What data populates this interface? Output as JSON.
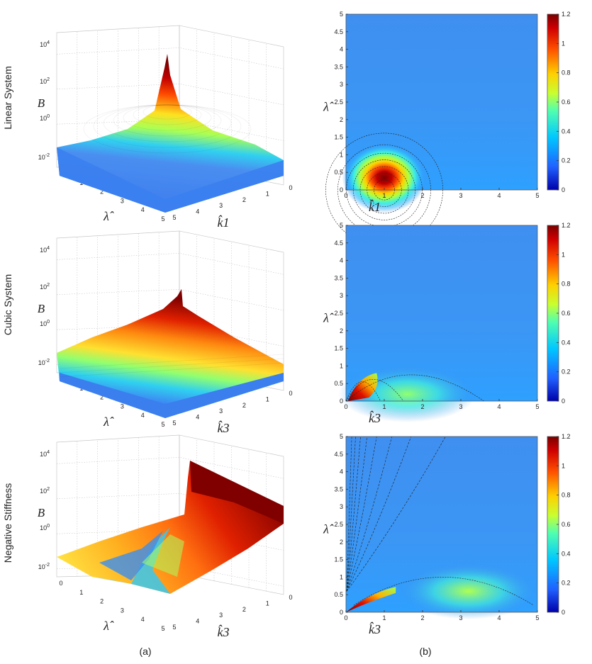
{
  "rows": [
    {
      "label": "Linear System"
    },
    {
      "label": "Cubic System"
    },
    {
      "label": "Negative Stiffness"
    }
  ],
  "columns": [
    {
      "label": "(a)"
    },
    {
      "label": "(b)"
    }
  ],
  "surface_axes": {
    "z_label": "B",
    "z_ticks": [
      "10^-2",
      "10^0",
      "10^2",
      "10^4"
    ],
    "lambda_label": "λ̂",
    "lambda_ticks": [
      "0",
      "1",
      "2",
      "3",
      "4",
      "5"
    ],
    "k_ticks": [
      "0",
      "1",
      "2",
      "3",
      "4",
      "5"
    ]
  },
  "k_labels": [
    "k̂1",
    "k̂3",
    "k̂3"
  ],
  "contour_axes": {
    "x_ticks": [
      "0",
      "1",
      "2",
      "3",
      "4",
      "5"
    ],
    "y_ticks": [
      "0",
      "0.5",
      "1",
      "1.5",
      "2",
      "2.5",
      "3",
      "3.5",
      "4",
      "4.5",
      "5"
    ],
    "y_label": "λ̂"
  },
  "colorbar": {
    "ticks": [
      "0",
      "0.2",
      "0.4",
      "0.6",
      "0.8",
      "1",
      "1.2"
    ],
    "range": [
      0,
      1.2
    ],
    "colormap": "jet"
  },
  "chart_data": [
    {
      "type": "heatmap",
      "panel": "Linear System (a)",
      "xlabel": "k̂1",
      "ylabel": "λ̂",
      "zlabel": "B",
      "xlim": [
        0,
        5
      ],
      "ylim": [
        0,
        5
      ],
      "zscale": "log",
      "zlim": [
        0.01,
        10000
      ]
    },
    {
      "type": "heatmap",
      "panel": "Linear System (b)",
      "xlabel": "k̂1",
      "ylabel": "λ̂",
      "xlim": [
        0,
        5
      ],
      "ylim": [
        0,
        5
      ],
      "clim": [
        0,
        1.2
      ]
    },
    {
      "type": "heatmap",
      "panel": "Cubic System (a)",
      "xlabel": "k̂3",
      "ylabel": "λ̂",
      "zlabel": "B",
      "xlim": [
        0,
        5
      ],
      "ylim": [
        0,
        5
      ],
      "zscale": "log",
      "zlim": [
        0.01,
        10000
      ]
    },
    {
      "type": "heatmap",
      "panel": "Cubic System (b)",
      "xlabel": "k̂3",
      "ylabel": "λ̂",
      "xlim": [
        0,
        5
      ],
      "ylim": [
        0,
        5
      ],
      "clim": [
        0,
        1.2
      ]
    },
    {
      "type": "heatmap",
      "panel": "Negative Stiffness (a)",
      "xlabel": "k̂3",
      "ylabel": "λ̂",
      "zlabel": "B",
      "xlim": [
        0,
        5
      ],
      "ylim": [
        0,
        5
      ],
      "zscale": "log",
      "zlim": [
        0.01,
        10000
      ]
    },
    {
      "type": "heatmap",
      "panel": "Negative Stiffness (b)",
      "xlabel": "k̂3",
      "ylabel": "λ̂",
      "xlim": [
        0,
        5
      ],
      "ylim": [
        0,
        5
      ],
      "clim": [
        0,
        1.2
      ]
    }
  ]
}
